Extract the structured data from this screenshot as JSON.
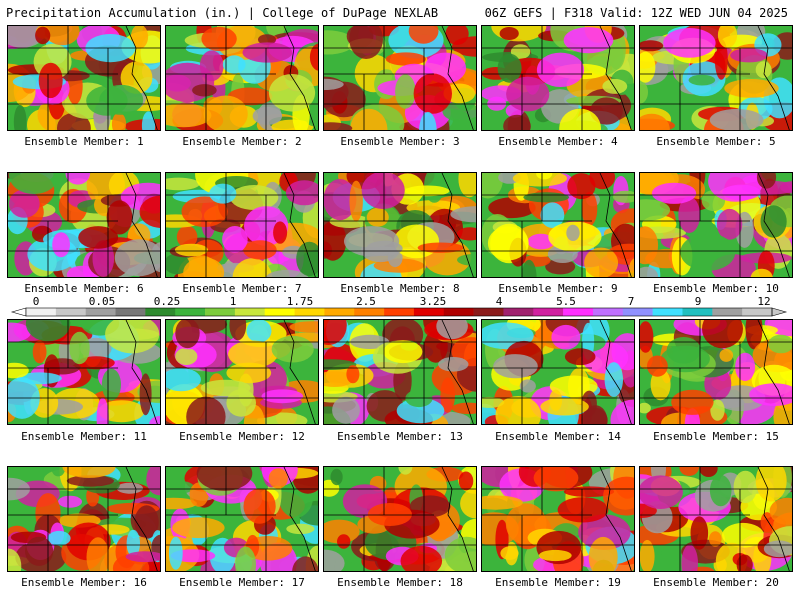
{
  "header": {
    "left": "Precipitation Accumulation (in.) | College of DuPage NEXLAB",
    "right": "06Z GEFS | F318 Valid: 12Z WED JUN 04 2025"
  },
  "panels": [
    {
      "label": "Ensemble Member: 1"
    },
    {
      "label": "Ensemble Member: 2"
    },
    {
      "label": "Ensemble Member: 3"
    },
    {
      "label": "Ensemble Member: 4"
    },
    {
      "label": "Ensemble Member: 5"
    },
    {
      "label": "Ensemble Member: 6"
    },
    {
      "label": "Ensemble Member: 7"
    },
    {
      "label": "Ensemble Member: 8"
    },
    {
      "label": "Ensemble Member: 9"
    },
    {
      "label": "Ensemble Member: 10"
    },
    {
      "label": "Ensemble Member: 11"
    },
    {
      "label": "Ensemble Member: 12"
    },
    {
      "label": "Ensemble Member: 13"
    },
    {
      "label": "Ensemble Member: 14"
    },
    {
      "label": "Ensemble Member: 15"
    },
    {
      "label": "Ensemble Member: 16"
    },
    {
      "label": "Ensemble Member: 17"
    },
    {
      "label": "Ensemble Member: 18"
    },
    {
      "label": "Ensemble Member: 19"
    },
    {
      "label": "Ensemble Member: 20"
    }
  ],
  "colorbar": {
    "labels": [
      "0",
      "0.05",
      "0.25",
      "1",
      "1.75",
      "2.5",
      "3.25",
      "4",
      "5.5",
      "7",
      "9",
      "12"
    ],
    "colors": [
      "#f0f0f0",
      "#c8c8c8",
      "#a0a0a0",
      "#787878",
      "#2e8b2e",
      "#3cb43c",
      "#7ccc3c",
      "#c8e63c",
      "#ffff00",
      "#ffd700",
      "#ffaa00",
      "#ff8000",
      "#ff4000",
      "#e00000",
      "#b00000",
      "#8b1a1a",
      "#a0206e",
      "#d020a0",
      "#ff30ff",
      "#c070ff",
      "#9090ff",
      "#40e0ff",
      "#20c0c0",
      "#a0a0a0",
      "#c8c8c8"
    ]
  }
}
